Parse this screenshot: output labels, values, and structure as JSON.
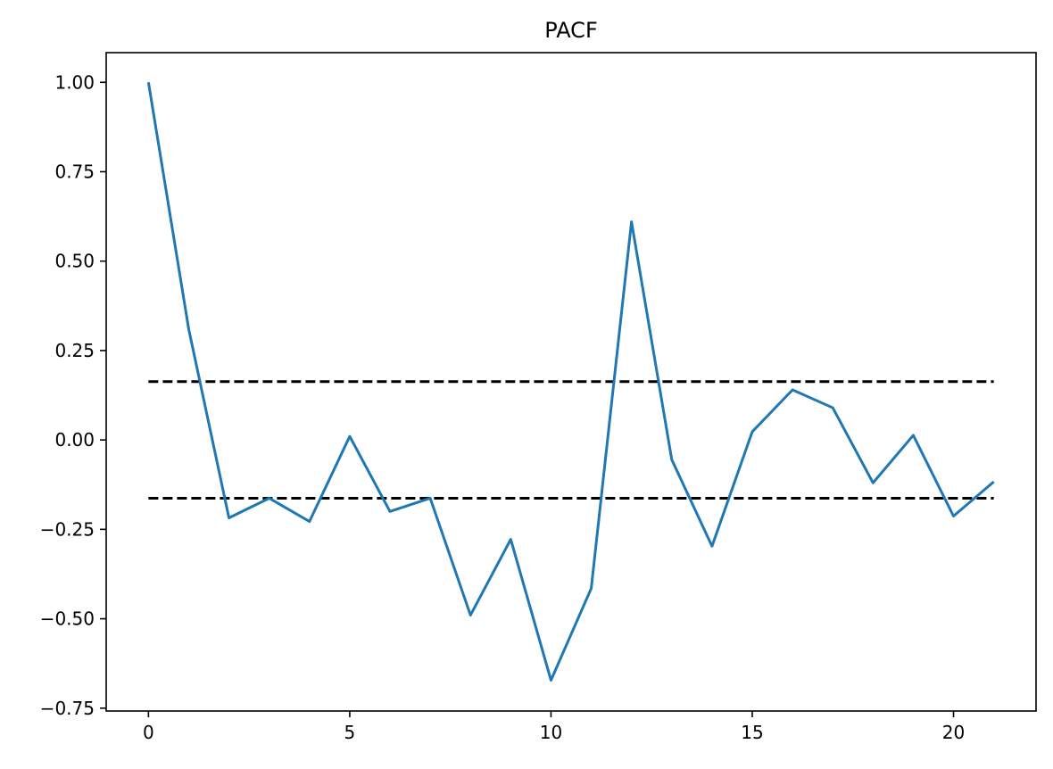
{
  "chart_data": {
    "type": "line",
    "title": "PACF",
    "xlabel": "",
    "ylabel": "",
    "xlim": [
      -1.05,
      22.05
    ],
    "ylim": [
      -0.758,
      1.083
    ],
    "xticks": [
      0,
      5,
      10,
      15,
      20
    ],
    "xtick_labels": [
      "0",
      "5",
      "10",
      "15",
      "20"
    ],
    "yticks": [
      1.0,
      0.75,
      0.5,
      0.25,
      0.0,
      -0.25,
      -0.5,
      -0.75
    ],
    "ytick_labels": [
      "1.00",
      "0.75",
      "0.50",
      "0.25",
      "0.00",
      "−0.25",
      "−0.50",
      "−0.75"
    ],
    "grid": false,
    "series": [
      {
        "color": "#1f77b4",
        "style": "solid",
        "x": [
          0,
          1,
          2,
          3,
          4,
          5,
          6,
          7,
          8,
          9,
          10,
          11,
          12,
          13,
          14,
          15,
          16,
          17,
          18,
          19,
          20,
          21
        ],
        "y": [
          1.0,
          0.31,
          -0.218,
          -0.163,
          -0.228,
          0.01,
          -0.2,
          -0.163,
          -0.49,
          -0.278,
          -0.672,
          -0.415,
          0.61,
          -0.055,
          -0.297,
          0.023,
          0.14,
          0.09,
          -0.12,
          0.013,
          -0.213,
          -0.117
        ]
      }
    ],
    "reference_lines": [
      {
        "y": 0.163,
        "x_range": [
          0,
          21
        ],
        "color": "#000000",
        "style": "dashed"
      },
      {
        "y": -0.163,
        "x_range": [
          0,
          21
        ],
        "color": "#000000",
        "style": "dashed"
      }
    ]
  }
}
